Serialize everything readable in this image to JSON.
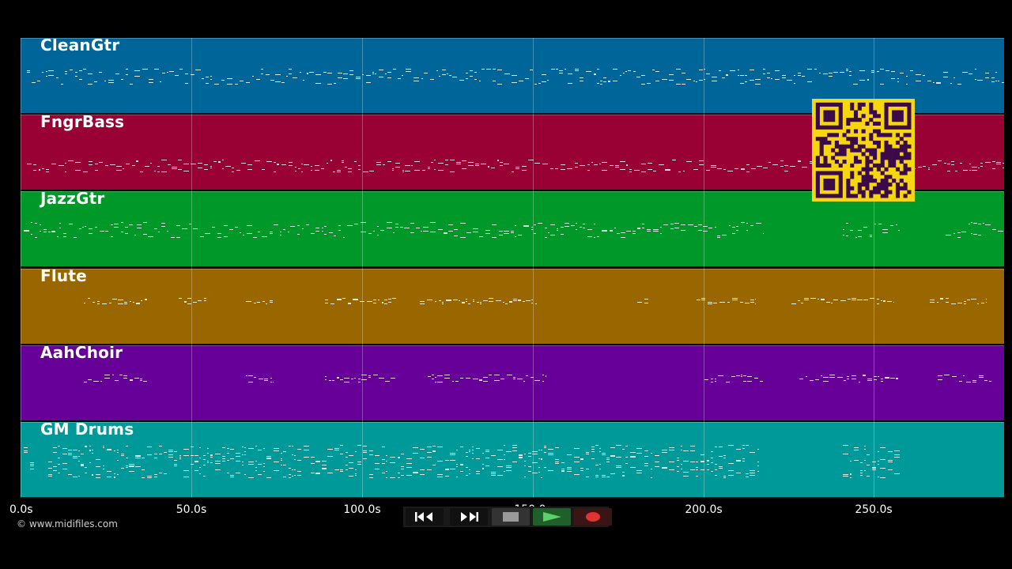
{
  "tracks": [
    {
      "name": "CleanGtr",
      "color": "#006699"
    },
    {
      "name": "FngrBass",
      "color": "#990033"
    },
    {
      "name": "JazzGtr",
      "color": "#009929"
    },
    {
      "name": "Flute",
      "color": "#996600"
    },
    {
      "name": "AahChoir",
      "color": "#660099"
    },
    {
      "name": "GM Drums",
      "color": "#009999"
    }
  ],
  "timeline": {
    "ticks": [
      "0.0s",
      "50.0s",
      "100.0s",
      "150.0s",
      "200.0s",
      "250.0s"
    ]
  },
  "copyright": "© www.midifiles.com",
  "transport": {
    "buttons": [
      {
        "name": "rewind-button",
        "icon": "rewind-icon"
      },
      {
        "name": "fast-forward-button",
        "icon": "fast-forward-icon"
      },
      {
        "name": "stop-button",
        "icon": "stop-icon"
      },
      {
        "name": "play-button",
        "icon": "play-icon",
        "color": "#4caf50"
      },
      {
        "name": "record-button",
        "icon": "record-icon",
        "color": "#e53935"
      }
    ]
  },
  "overlay": {
    "icon": "qr-code-icon",
    "color": "#f5d60f"
  }
}
